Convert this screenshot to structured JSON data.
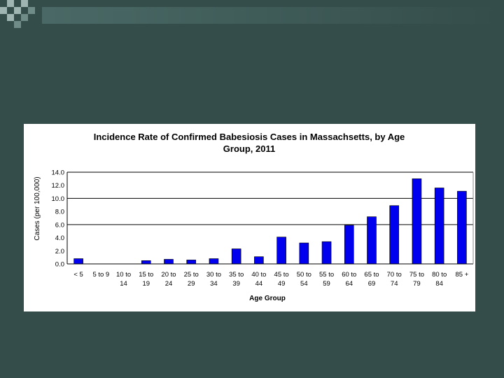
{
  "colors": {
    "background": "#344c4a",
    "bar": "#0000ee",
    "deco_light": "#9fb5b2",
    "deco_mid": "#6f8c89"
  },
  "chart_data": {
    "type": "bar",
    "title_lines": [
      "Incidence Rate of Confirmed Babesiosis Cases in Massachsetts, by Age",
      "Group, 2011"
    ],
    "xlabel": "Age Group",
    "ylabel": "Cases (per 100,000)",
    "ylim": [
      0,
      14
    ],
    "yticks": [
      "0.0",
      "2.0",
      "4.0",
      "6.0",
      "8.0",
      "10.0",
      "12.0",
      "14.0"
    ],
    "grid": true,
    "categories": [
      [
        "< 5"
      ],
      [
        "5 to 9"
      ],
      [
        "10 to",
        "14"
      ],
      [
        "15 to",
        "19"
      ],
      [
        "20 to",
        "24"
      ],
      [
        "25 to",
        "29"
      ],
      [
        "30 to",
        "34"
      ],
      [
        "35 to",
        "39"
      ],
      [
        "40 to",
        "44"
      ],
      [
        "45 to",
        "49"
      ],
      [
        "50 to",
        "54"
      ],
      [
        "55 to",
        "59"
      ],
      [
        "60 to",
        "64"
      ],
      [
        "65 to",
        "69"
      ],
      [
        "70 to",
        "74"
      ],
      [
        "75 to",
        "79"
      ],
      [
        "80 to",
        "84"
      ],
      [
        "85 +"
      ]
    ],
    "values": [
      0.8,
      0.0,
      0.0,
      0.5,
      0.7,
      0.6,
      0.8,
      2.3,
      1.1,
      4.1,
      3.2,
      3.4,
      5.9,
      7.2,
      8.9,
      13.0,
      11.6,
      11.1
    ]
  }
}
